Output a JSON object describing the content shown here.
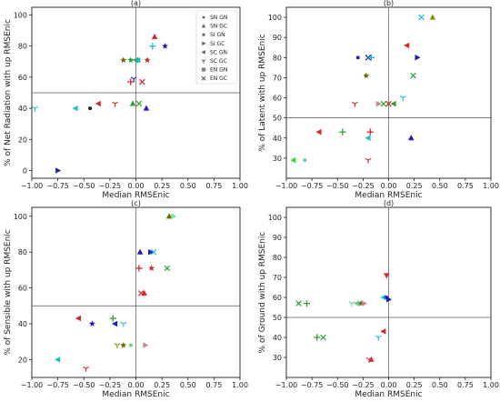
{
  "legend": [
    {
      "label": "SN GN",
      "marker": "circle"
    },
    {
      "label": "SN GC",
      "marker": "triangle-up"
    },
    {
      "label": "SI GN",
      "marker": "star"
    },
    {
      "label": "SI GC",
      "marker": "triangle-right"
    },
    {
      "label": "SC GN",
      "marker": "triangle-left"
    },
    {
      "label": "SC GC",
      "marker": "tri-down"
    },
    {
      "label": "EN GN",
      "marker": "plus-circle"
    },
    {
      "label": "EN GC",
      "marker": "x"
    }
  ],
  "chart_data": [
    {
      "type": "scatter",
      "title": "(a)",
      "xlabel": "Median RMSEnic",
      "ylabel": "% of Net Radiation with up RMSEnic",
      "xlim": [
        -1.0,
        1.0
      ],
      "ylim": [
        -5,
        105
      ],
      "reference_lines": {
        "x": 0,
        "y": 50
      },
      "xticks": [
        "−1.00",
        "−0.75",
        "−0.50",
        "−0.25",
        "0.00",
        "0.25",
        "0.50",
        "0.75",
        "1.00"
      ],
      "yticks": [
        "0",
        "20",
        "40",
        "60",
        "80",
        "100"
      ],
      "legend_position": "top-right",
      "points": [
        {
          "x": 0.18,
          "y": 86,
          "marker": "triangle-up",
          "color": "#d62728"
        },
        {
          "x": 0.16,
          "y": 80,
          "marker": "plus",
          "color": "#17becf"
        },
        {
          "x": 0.28,
          "y": 80,
          "marker": "star",
          "color": "#1f1fb4"
        },
        {
          "x": -0.12,
          "y": 71,
          "marker": "star",
          "color": "#6b6b00"
        },
        {
          "x": -0.05,
          "y": 71,
          "marker": "star",
          "color": "#2ca02c"
        },
        {
          "x": 0.0,
          "y": 71,
          "marker": "triangle-left",
          "color": "#2ca02c"
        },
        {
          "x": 0.11,
          "y": 71,
          "marker": "star",
          "color": "#d62728"
        },
        {
          "x": 0.02,
          "y": 71,
          "marker": "triangle-left",
          "color": "#17becf"
        },
        {
          "x": -0.05,
          "y": 57,
          "marker": "plus",
          "color": "#d62728"
        },
        {
          "x": -0.02,
          "y": 59,
          "marker": "tri-down",
          "color": "#1f1fb4"
        },
        {
          "x": 0.06,
          "y": 57,
          "marker": "x",
          "color": "#d62728"
        },
        {
          "x": 0.03,
          "y": 43,
          "marker": "x",
          "color": "#2ca02c"
        },
        {
          "x": -0.03,
          "y": 43,
          "marker": "triangle-up",
          "color": "#2ca02c"
        },
        {
          "x": 0.1,
          "y": 40,
          "marker": "triangle-up",
          "color": "#1f1fb4"
        },
        {
          "x": -0.36,
          "y": 43,
          "marker": "triangle-left",
          "color": "#d62728"
        },
        {
          "x": -0.2,
          "y": 43,
          "marker": "tri-down",
          "color": "#d62728"
        },
        {
          "x": -0.44,
          "y": 40,
          "marker": "circle",
          "color": "#222222"
        },
        {
          "x": -0.58,
          "y": 40,
          "marker": "triangle-left",
          "color": "#17becf"
        },
        {
          "x": -0.97,
          "y": 40,
          "marker": "tri-down",
          "color": "#17becf"
        },
        {
          "x": -0.75,
          "y": 0,
          "marker": "triangle-right",
          "color": "#1f1fb4"
        }
      ]
    },
    {
      "type": "scatter",
      "title": "(b)",
      "xlabel": "Median RMSEnic",
      "ylabel": "% of Latent with up RMSEnic",
      "xlim": [
        -1.0,
        1.0
      ],
      "ylim": [
        20,
        105
      ],
      "reference_lines": {
        "x": 0,
        "y": 50
      },
      "xticks": [
        "−1.00",
        "−0.75",
        "−0.50",
        "−0.25",
        "0.00",
        "0.25",
        "0.50",
        "0.75",
        "1.00"
      ],
      "yticks": [
        "30",
        "40",
        "50",
        "60",
        "70",
        "80",
        "90",
        "100"
      ],
      "points": [
        {
          "x": 0.32,
          "y": 100,
          "marker": "x",
          "color": "#17becf"
        },
        {
          "x": 0.43,
          "y": 100,
          "marker": "triangle-up",
          "color": "#8c8c00"
        },
        {
          "x": 0.18,
          "y": 86,
          "marker": "triangle-left",
          "color": "#d62728"
        },
        {
          "x": 0.28,
          "y": 80,
          "marker": "triangle-right",
          "color": "#1f1fb4"
        },
        {
          "x": -0.3,
          "y": 80,
          "marker": "circle",
          "color": "#1f1fb4"
        },
        {
          "x": -0.2,
          "y": 80,
          "marker": "x",
          "color": "#1f1fb4"
        },
        {
          "x": -0.17,
          "y": 80,
          "marker": "plus",
          "color": "#17becf"
        },
        {
          "x": -0.22,
          "y": 71,
          "marker": "star",
          "color": "#6b6b00"
        },
        {
          "x": 0.24,
          "y": 71,
          "marker": "x",
          "color": "#2ca02c"
        },
        {
          "x": 0.14,
          "y": 60,
          "marker": "tri-down",
          "color": "#17becf"
        },
        {
          "x": -0.33,
          "y": 57,
          "marker": "tri-down",
          "color": "#d62728"
        },
        {
          "x": -0.1,
          "y": 57,
          "marker": "triangle-right",
          "color": "#c58a8a"
        },
        {
          "x": -0.05,
          "y": 57,
          "marker": "x",
          "color": "#2ca02c"
        },
        {
          "x": 0.0,
          "y": 57,
          "marker": "x",
          "color": "#d62728"
        },
        {
          "x": 0.05,
          "y": 57,
          "marker": "triangle-left",
          "color": "#2ca02c"
        },
        {
          "x": -0.18,
          "y": 43,
          "marker": "plus",
          "color": "#d62728"
        },
        {
          "x": -0.68,
          "y": 43,
          "marker": "triangle-left",
          "color": "#d62728"
        },
        {
          "x": -0.45,
          "y": 43,
          "marker": "plus",
          "color": "#2ca02c"
        },
        {
          "x": -0.2,
          "y": 40,
          "marker": "triangle-left",
          "color": "#17becf"
        },
        {
          "x": 0.22,
          "y": 40,
          "marker": "triangle-up",
          "color": "#1f1fb4"
        },
        {
          "x": -0.2,
          "y": 29,
          "marker": "tri-down",
          "color": "#d62728"
        },
        {
          "x": -0.93,
          "y": 29,
          "marker": "triangle-left",
          "color": "#33dd33"
        },
        {
          "x": -0.82,
          "y": 29,
          "marker": "circle",
          "color": "#66cc99"
        }
      ]
    },
    {
      "type": "scatter",
      "title": "(c)",
      "xlabel": "Median RMSEnic",
      "ylabel": "% of Sensible with up RMSEnic",
      "xlim": [
        -1.0,
        1.0
      ],
      "ylim": [
        10,
        105
      ],
      "reference_lines": {
        "x": 0,
        "y": 50
      },
      "xticks": [
        "−1.00",
        "−0.75",
        "−0.50",
        "−0.25",
        "0.00",
        "0.25",
        "0.50",
        "0.75",
        "1.00"
      ],
      "yticks": [
        "20",
        "40",
        "60",
        "80",
        "100"
      ],
      "points": [
        {
          "x": 0.32,
          "y": 100,
          "marker": "triangle-up",
          "color": "#6b6b00"
        },
        {
          "x": 0.36,
          "y": 100,
          "marker": "triangle-right",
          "color": "#66ee99"
        },
        {
          "x": 0.04,
          "y": 80,
          "marker": "triangle-up",
          "color": "#1f1fb4"
        },
        {
          "x": 0.14,
          "y": 80,
          "marker": "triangle-right",
          "color": "#1f1fb4"
        },
        {
          "x": 0.17,
          "y": 80,
          "marker": "x",
          "color": "#17becf"
        },
        {
          "x": 0.03,
          "y": 71,
          "marker": "plus",
          "color": "#d62728"
        },
        {
          "x": 0.15,
          "y": 71,
          "marker": "star",
          "color": "#d62728"
        },
        {
          "x": 0.3,
          "y": 71,
          "marker": "x",
          "color": "#2ca02c"
        },
        {
          "x": 0.05,
          "y": 57,
          "marker": "x",
          "color": "#d62728"
        },
        {
          "x": 0.08,
          "y": 57,
          "marker": "triangle-up",
          "color": "#d62728"
        },
        {
          "x": -0.55,
          "y": 43,
          "marker": "triangle-left",
          "color": "#d62728"
        },
        {
          "x": -0.22,
          "y": 43,
          "marker": "plus",
          "color": "#2ca02c"
        },
        {
          "x": -0.42,
          "y": 40,
          "marker": "star",
          "color": "#1f1fb4"
        },
        {
          "x": -0.2,
          "y": 40,
          "marker": "triangle-left",
          "color": "#1f1fb4"
        },
        {
          "x": -0.12,
          "y": 40,
          "marker": "tri-down",
          "color": "#17becf"
        },
        {
          "x": -0.18,
          "y": 28,
          "marker": "tri-down",
          "color": "#8c8c00"
        },
        {
          "x": -0.12,
          "y": 28,
          "marker": "star",
          "color": "#6b6b00"
        },
        {
          "x": -0.05,
          "y": 28,
          "marker": "circle",
          "color": "#66cc99"
        },
        {
          "x": 0.09,
          "y": 28,
          "marker": "triangle-right",
          "color": "#c58a8a"
        },
        {
          "x": -0.75,
          "y": 20,
          "marker": "triangle-left",
          "color": "#17becf"
        },
        {
          "x": -0.48,
          "y": 15,
          "marker": "tri-down",
          "color": "#d62728"
        }
      ]
    },
    {
      "type": "scatter",
      "title": "(d)",
      "xlabel": "Median RMSEnic",
      "ylabel": "% of Ground with up RMSEnic",
      "xlim": [
        -1.0,
        1.0
      ],
      "ylim": [
        20,
        105
      ],
      "reference_lines": {
        "x": 0,
        "y": 50
      },
      "xticks": [
        "−1.00",
        "−0.75",
        "−0.50",
        "−0.25",
        "0.00",
        "0.25",
        "0.50",
        "0.75",
        "1.00"
      ],
      "yticks": [
        "30",
        "40",
        "50",
        "60",
        "70",
        "80",
        "90",
        "100"
      ],
      "points": [
        {
          "x": -0.02,
          "y": 71,
          "marker": "triangle-down",
          "color": "#d62728"
        },
        {
          "x": -0.05,
          "y": 60,
          "marker": "triangle-left",
          "color": "#17becf"
        },
        {
          "x": -0.02,
          "y": 60,
          "marker": "circle",
          "color": "#1f1fb4"
        },
        {
          "x": 0.0,
          "y": 59,
          "marker": "triangle-right",
          "color": "#1f1fb4"
        },
        {
          "x": -0.88,
          "y": 57,
          "marker": "x",
          "color": "#2ca02c"
        },
        {
          "x": -0.8,
          "y": 57,
          "marker": "plus",
          "color": "#2ca02c"
        },
        {
          "x": -0.36,
          "y": 57,
          "marker": "tri-down",
          "color": "#66cc99"
        },
        {
          "x": -0.31,
          "y": 57,
          "marker": "triangle-left",
          "color": "#66cc99"
        },
        {
          "x": -0.27,
          "y": 57,
          "marker": "star",
          "color": "#6b6b00"
        },
        {
          "x": -0.24,
          "y": 57,
          "marker": "triangle-right",
          "color": "#c58a8a"
        },
        {
          "x": -0.05,
          "y": 43,
          "marker": "triangle-left",
          "color": "#d62728"
        },
        {
          "x": -0.1,
          "y": 40,
          "marker": "tri-down",
          "color": "#17becf"
        },
        {
          "x": -0.7,
          "y": 40,
          "marker": "plus",
          "color": "#2ca02c"
        },
        {
          "x": -0.64,
          "y": 40,
          "marker": "x",
          "color": "#2ca02c"
        },
        {
          "x": -0.19,
          "y": 29,
          "marker": "tri-down",
          "color": "#d62728"
        },
        {
          "x": -0.17,
          "y": 29,
          "marker": "triangle-up",
          "color": "#d62728"
        }
      ]
    }
  ]
}
